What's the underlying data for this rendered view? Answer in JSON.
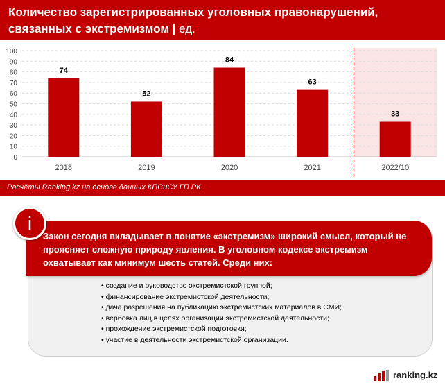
{
  "header": {
    "title": "Количество зарегистрированных уголовных правонарушений, связанных с экстремизмом",
    "separator": " | ",
    "unit": "ед."
  },
  "colors": {
    "accent": "#c00000",
    "highlight_band": "#fbe4e4",
    "info_box": "#f1f1f1"
  },
  "chart_data": {
    "type": "bar",
    "categories": [
      "2018",
      "2019",
      "2020",
      "2021",
      "2022/10"
    ],
    "values": [
      74,
      52,
      84,
      63,
      33
    ],
    "title": "Количество зарегистрированных уголовных правонарушений, связанных с экстремизмом",
    "xlabel": "",
    "ylabel": "ед.",
    "ylim": [
      0,
      100
    ],
    "yticks": [
      0,
      10,
      20,
      30,
      40,
      50,
      60,
      70,
      80,
      90,
      100
    ],
    "highlighted_category": "2022/10",
    "grid": true
  },
  "source": "Расчёты Ranking.kz на основе данных КПСиСУ ГП РК",
  "info": {
    "icon_letter": "i",
    "lead": "Закон сегодня вкладывает в понятие «экстремизм» широкий смысл, который не проясняет сложную природу явления. В уголовном кодексе экстремизм охватывает как минимум шесть статей. Среди них:",
    "items": [
      "создание и руководство экстремистской группой;",
      "финансирование экстремистской деятельности;",
      "дача разрешения на публикацию экстремистских материалов в СМИ;",
      "вербовка лиц в целях организации экстремистской деятельности;",
      "прохождение экстремистской подготовки;",
      "участие в деятельности экстремистской организации."
    ]
  },
  "logo": {
    "text": "ranking.kz"
  }
}
